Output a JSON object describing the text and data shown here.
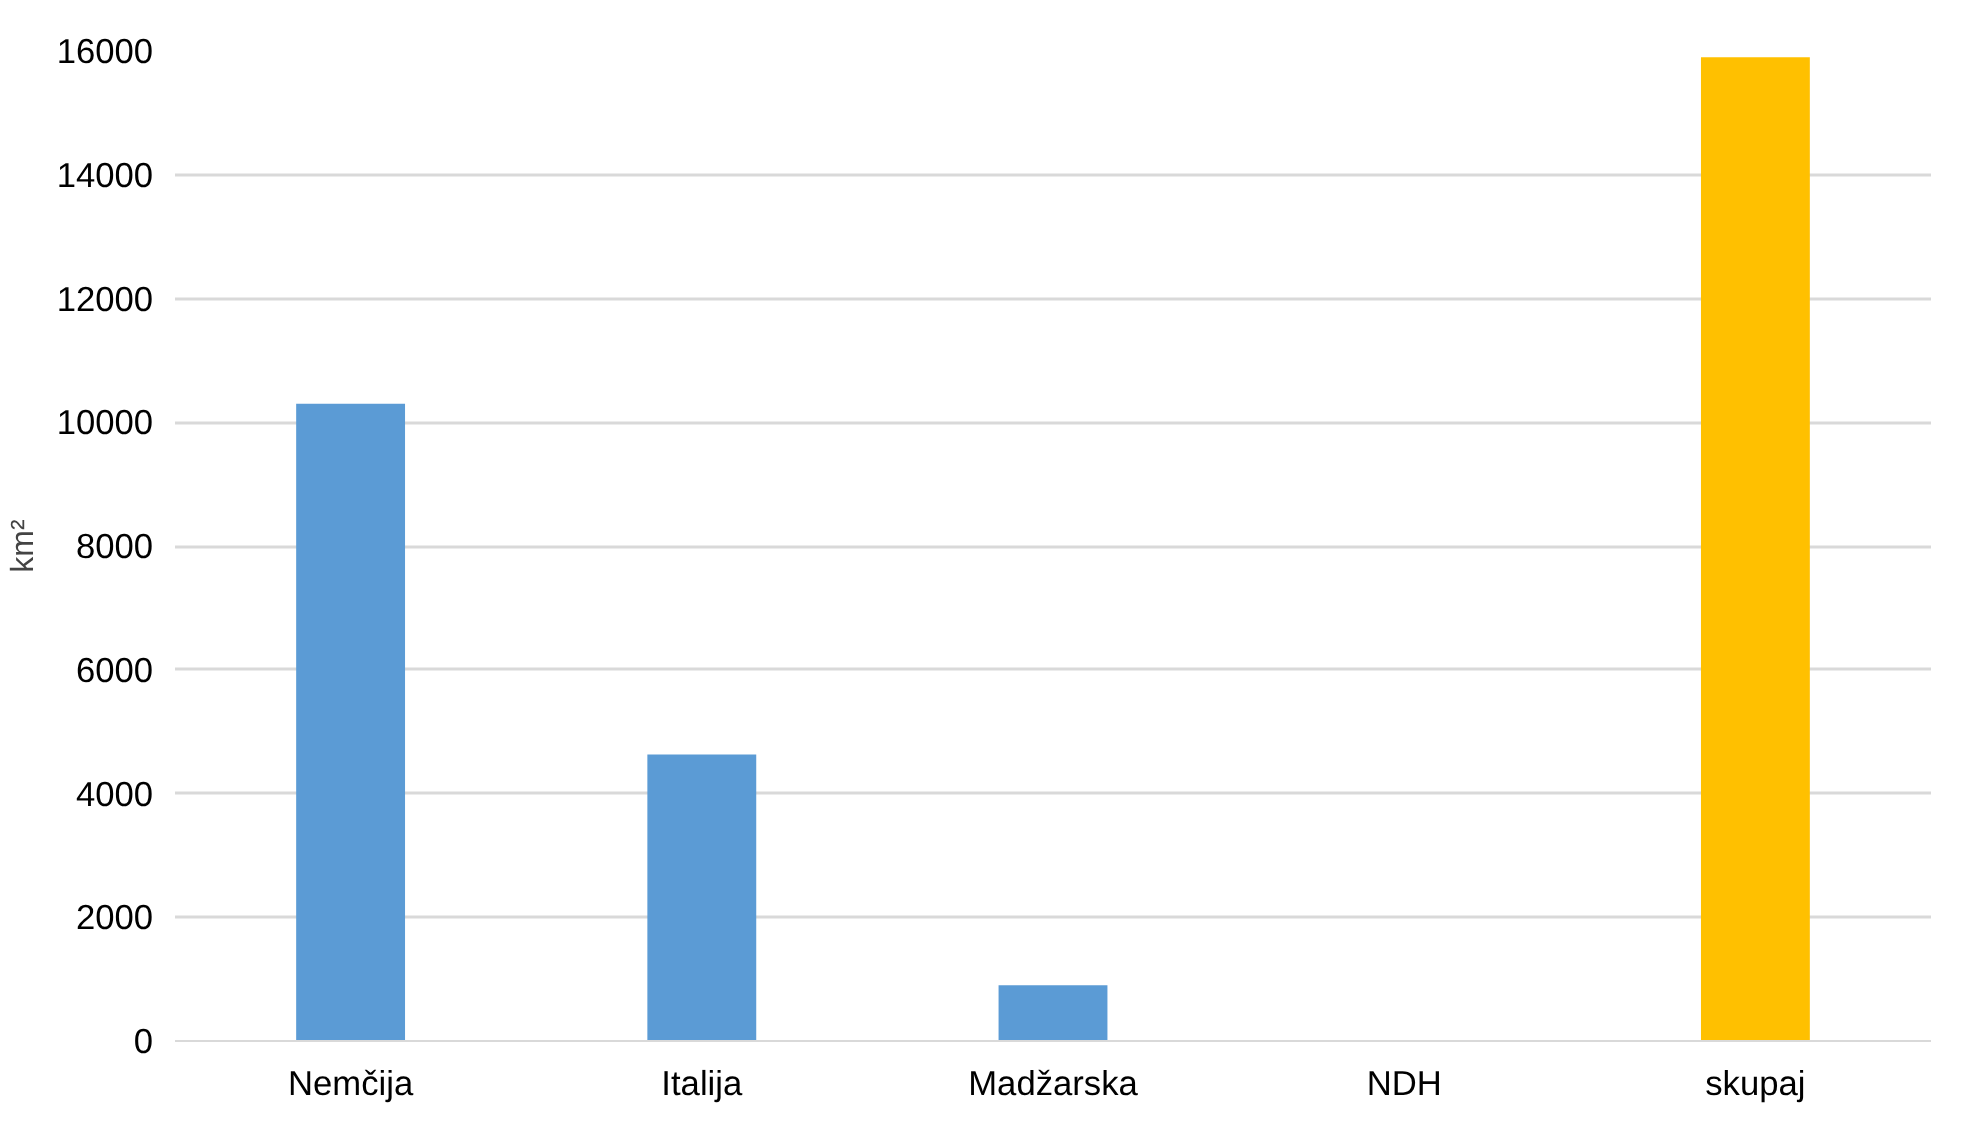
{
  "chart_data": {
    "type": "bar",
    "ylabel": "km²",
    "categories": [
      "Nemčija",
      "Italija",
      "Madžarska",
      "NDH",
      "skupaj"
    ],
    "values": [
      10300,
      4630,
      900,
      0,
      15900
    ],
    "colors": [
      "#5b9bd5",
      "#5b9bd5",
      "#5b9bd5",
      "#5b9bd5",
      "#ffc000"
    ],
    "ylim": [
      0,
      16000
    ],
    "yticks": [
      0,
      2000,
      4000,
      6000,
      8000,
      10000,
      12000,
      14000,
      16000
    ],
    "grid": "y"
  }
}
